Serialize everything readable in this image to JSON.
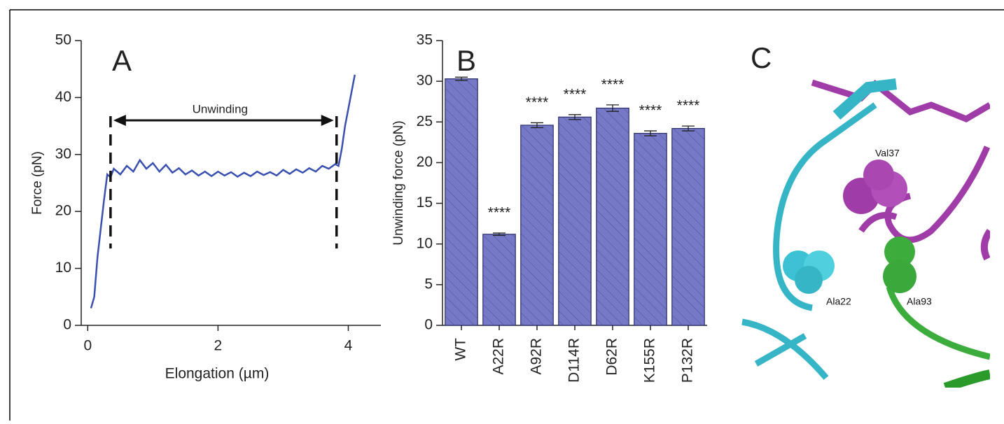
{
  "chart_data": [
    {
      "type": "line",
      "panel_label": "A",
      "xlabel": "Elongation (µm)",
      "ylabel": "Force (pN)",
      "x": [
        0.05,
        0.1,
        0.15,
        0.2,
        0.25,
        0.3,
        0.35,
        0.4,
        0.5,
        0.6,
        0.7,
        0.8,
        0.9,
        1.0,
        1.1,
        1.2,
        1.3,
        1.4,
        1.5,
        1.6,
        1.7,
        1.8,
        1.9,
        2.0,
        2.1,
        2.2,
        2.3,
        2.4,
        2.5,
        2.6,
        2.7,
        2.8,
        2.9,
        3.0,
        3.1,
        3.2,
        3.3,
        3.4,
        3.5,
        3.6,
        3.7,
        3.8,
        3.85,
        3.9,
        3.95,
        4.0,
        4.05,
        4.1
      ],
      "series": [
        {
          "color": "#3a50b0",
          "values": [
            3,
            5,
            12,
            17,
            22,
            26.5,
            26,
            27.5,
            26.5,
            28,
            27,
            29,
            27.5,
            28.5,
            27,
            28.2,
            26.8,
            27.6,
            26.5,
            27.2,
            26.3,
            27,
            26.2,
            27,
            26.3,
            26.9,
            26.1,
            26.8,
            26.2,
            27,
            26.4,
            26.9,
            26.3,
            27.3,
            26.6,
            27.4,
            26.8,
            27.6,
            27,
            28,
            27.5,
            28.3,
            28,
            31,
            35,
            38,
            41,
            44
          ]
        }
      ],
      "xlim": [
        -0.1,
        4.5
      ],
      "xticks": [
        0,
        2,
        4
      ],
      "ylim": [
        0,
        50
      ],
      "yticks": [
        0,
        10,
        20,
        30,
        40,
        50
      ],
      "annotation": {
        "text": "Unwinding",
        "x_start": 0.35,
        "x_end": 3.82,
        "y": 36,
        "y_low": 13.5
      }
    },
    {
      "type": "bar",
      "panel_label": "B",
      "ylabel": "Unwinding force (pN)",
      "categories": [
        "WT",
        "A22R",
        "A92R",
        "D114R",
        "D62R",
        "K155R",
        "P132R"
      ],
      "values": [
        30.3,
        11.2,
        24.6,
        25.6,
        26.7,
        23.6,
        24.2
      ],
      "errors": [
        0.2,
        0.15,
        0.3,
        0.3,
        0.4,
        0.3,
        0.3
      ],
      "significance": [
        null,
        "****",
        "****",
        "****",
        "****",
        "****",
        "****"
      ],
      "color": "#7579c8",
      "ylim": [
        0,
        35
      ],
      "yticks": [
        0,
        5,
        10,
        15,
        20,
        25,
        30,
        35
      ]
    }
  ],
  "panel_c": {
    "label": "C",
    "residues": [
      "Val37",
      "Ala22",
      "Ala93"
    ]
  }
}
